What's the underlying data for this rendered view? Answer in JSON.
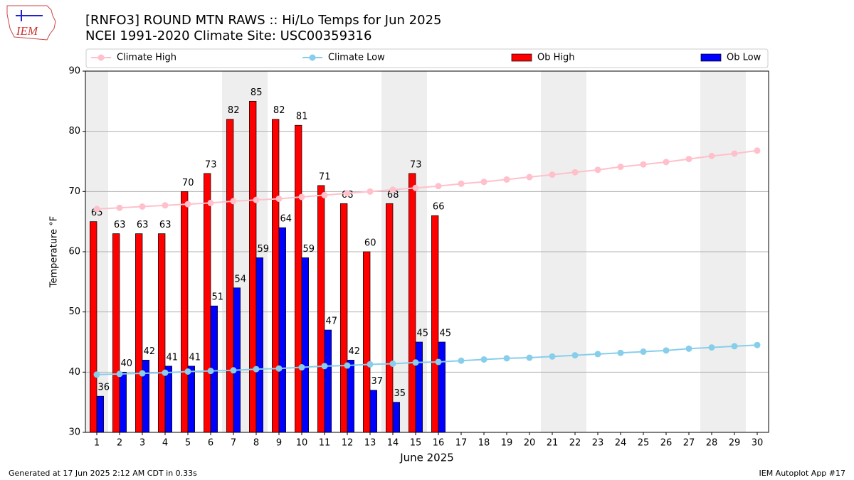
{
  "chart_data": {
    "type": "bar",
    "title": "[RNFO3] ROUND MTN RAWS :: Hi/Lo Temps for Jun 2025",
    "subtitle": "NCEI 1991-2020 Climate Site: USC00359316",
    "xlabel": "June 2025",
    "ylabel": "Temperature °F",
    "logo_text": "IEM",
    "footer_left": "Generated at 17 Jun 2025 2:12 AM CDT in 0.33s",
    "footer_right": "IEM Autoplot App #17",
    "x": [
      1,
      2,
      3,
      4,
      5,
      6,
      7,
      8,
      9,
      10,
      11,
      12,
      13,
      14,
      15,
      16,
      17,
      18,
      19,
      20,
      21,
      22,
      23,
      24,
      25,
      26,
      27,
      28,
      29,
      30
    ],
    "xlim": [
      0.5,
      30.5
    ],
    "xticks": [
      1,
      2,
      3,
      4,
      5,
      6,
      7,
      8,
      9,
      10,
      11,
      12,
      13,
      14,
      15,
      16,
      17,
      18,
      19,
      20,
      21,
      22,
      23,
      24,
      25,
      26,
      27,
      28,
      29,
      30
    ],
    "ylim": [
      30,
      90
    ],
    "yticks": [
      30,
      40,
      50,
      60,
      70,
      80,
      90
    ],
    "grid": true,
    "weekend_days": [
      1,
      7,
      8,
      14,
      15,
      21,
      22,
      28,
      29
    ],
    "series": [
      {
        "name": "Climate High",
        "type": "line",
        "color": "#ffc0cb",
        "values": [
          67.1,
          67.3,
          67.5,
          67.7,
          67.9,
          68.1,
          68.4,
          68.6,
          68.8,
          69.1,
          69.4,
          69.7,
          70.0,
          70.3,
          70.6,
          70.9,
          71.3,
          71.6,
          72.0,
          72.4,
          72.8,
          73.2,
          73.6,
          74.1,
          74.5,
          74.9,
          75.4,
          75.9,
          76.3,
          76.8
        ]
      },
      {
        "name": "Climate Low",
        "type": "line",
        "color": "#87ceeb",
        "values": [
          39.6,
          39.7,
          39.8,
          39.9,
          40.1,
          40.2,
          40.3,
          40.5,
          40.6,
          40.8,
          41.0,
          41.1,
          41.3,
          41.4,
          41.6,
          41.7,
          41.9,
          42.1,
          42.3,
          42.4,
          42.6,
          42.8,
          43.0,
          43.2,
          43.4,
          43.6,
          43.9,
          44.1,
          44.3,
          44.5
        ]
      },
      {
        "name": "Ob High",
        "type": "bar",
        "color": "#ff0000",
        "values": [
          65,
          63,
          63,
          63,
          70,
          73,
          82,
          85,
          82,
          81,
          71,
          68,
          60,
          68,
          73,
          66,
          null,
          null,
          null,
          null,
          null,
          null,
          null,
          null,
          null,
          null,
          null,
          null,
          null,
          null
        ]
      },
      {
        "name": "Ob Low",
        "type": "bar",
        "color": "#0000ff",
        "values": [
          36,
          40,
          42,
          41,
          41,
          51,
          54,
          59,
          64,
          59,
          47,
          42,
          37,
          35,
          45,
          45,
          null,
          null,
          null,
          null,
          null,
          null,
          null,
          null,
          null,
          null,
          null,
          null,
          null,
          null
        ]
      }
    ]
  }
}
